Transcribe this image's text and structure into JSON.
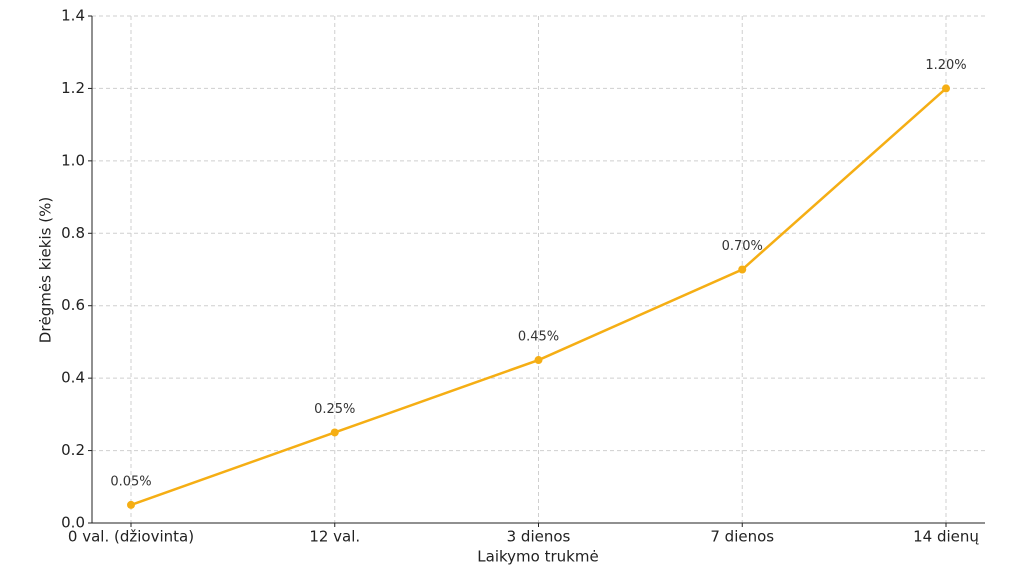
{
  "chart_data": {
    "type": "line",
    "x_label": "Laikymo trukmė",
    "y_label": "Drėgmės kiekis (%)",
    "categories": [
      "0 val. (džiovinta)",
      "12 val.",
      "3 dienos",
      "7 dienos",
      "14 dienų"
    ],
    "values": [
      0.05,
      0.25,
      0.45,
      0.7,
      1.2
    ],
    "value_labels": [
      "0.05%",
      "0.25%",
      "0.45%",
      "0.70%",
      "1.20%"
    ],
    "color": "#f5ae14",
    "ylim": [
      0,
      1.4
    ],
    "yticks": [
      {
        "value": 0,
        "label": "0.0"
      },
      0.2,
      0.4,
      0.6,
      0.8,
      {
        "value": 1,
        "label": "1.0"
      },
      1.2,
      1.4
    ],
    "grid": true
  }
}
